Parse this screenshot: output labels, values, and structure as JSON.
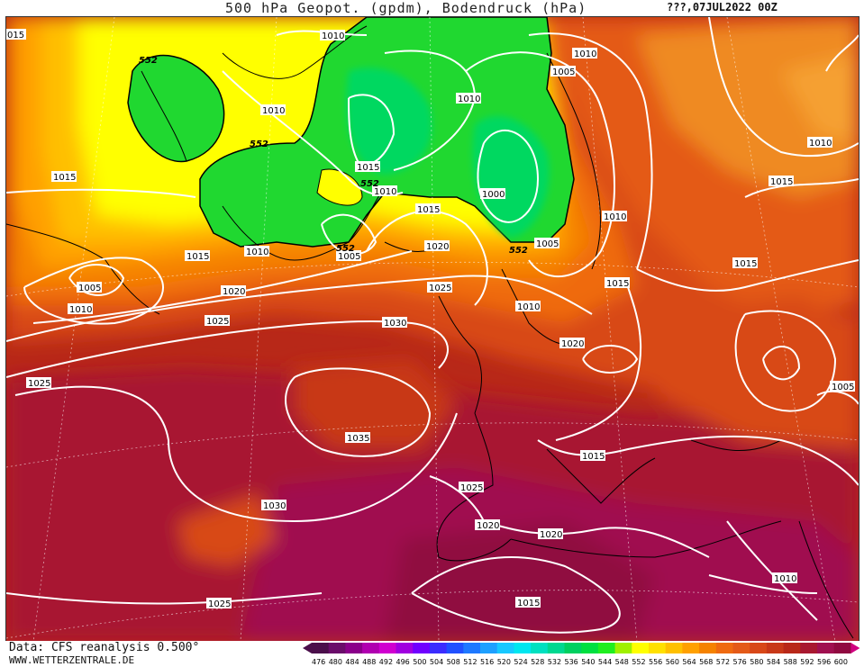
{
  "header": {
    "title": "500 hPa Geopot. (gpdm), Bodendruck (hPa)",
    "date": "???,07JUL2022 00Z"
  },
  "footer": {
    "data_source": "Data: CFS reanalysis 0.500°",
    "website": "WWW.WETTERZENTRALE.DE"
  },
  "colorbar": {
    "levels": [
      "476",
      "480",
      "484",
      "488",
      "492",
      "496",
      "500",
      "504",
      "508",
      "512",
      "516",
      "520",
      "524",
      "528",
      "532",
      "536",
      "540",
      "544",
      "548",
      "552",
      "556",
      "560",
      "564",
      "568",
      "572",
      "576",
      "580",
      "584",
      "588",
      "592",
      "596",
      "600"
    ],
    "colors": [
      "#4b0f4b",
      "#6a0d6a",
      "#8a008a",
      "#b000b0",
      "#d000d0",
      "#a000e0",
      "#7000ff",
      "#3b2cff",
      "#2050ff",
      "#1e78ff",
      "#1ea0ff",
      "#18c8ff",
      "#00e6f0",
      "#00e0c0",
      "#00d890",
      "#00d060",
      "#00e040",
      "#20ee20",
      "#a0f000",
      "#ffff00",
      "#ffe000",
      "#ffc000",
      "#ffa000",
      "#f58200",
      "#ef6a10",
      "#e45a18",
      "#d84818",
      "#c83818",
      "#b82818",
      "#a81830",
      "#a01050",
      "#900a40"
    ]
  },
  "isobars": [
    {
      "text": "1010",
      "where": "top-center"
    },
    {
      "text": "1010",
      "where": "north-norway"
    },
    {
      "text": "1005",
      "where": "north-norway-2"
    },
    {
      "text": "1010",
      "where": "greenland-north"
    },
    {
      "text": "1010",
      "where": "greenland-east"
    },
    {
      "text": "1015",
      "where": "iceland-north"
    },
    {
      "text": "1010",
      "where": "iceland"
    },
    {
      "text": "1000",
      "where": "norwegian-sea"
    },
    {
      "text": "1015",
      "where": "iceland-south"
    },
    {
      "text": "1010",
      "where": "greenland-south"
    },
    {
      "text": "1005",
      "where": "denmark-strait"
    },
    {
      "text": "1020",
      "where": "faroe"
    },
    {
      "text": "1005",
      "where": "scandinavia"
    },
    {
      "text": "1010",
      "where": "finland"
    },
    {
      "text": "1015",
      "where": "west-atlantic"
    },
    {
      "text": "1015",
      "where": "labrador-sea"
    },
    {
      "text": "1005",
      "where": "labrador-low"
    },
    {
      "text": "1010",
      "where": "labrador-low-2"
    },
    {
      "text": "1020",
      "where": "north-atlantic"
    },
    {
      "text": "1025",
      "where": "north-atlantic-2"
    },
    {
      "text": "1030",
      "where": "azores-north"
    },
    {
      "text": "1025",
      "where": "ireland"
    },
    {
      "text": "1015",
      "where": "baltic"
    },
    {
      "text": "1010",
      "where": "skagerrak"
    },
    {
      "text": "1020",
      "where": "north-sea"
    },
    {
      "text": "1015",
      "where": "russia-west"
    },
    {
      "text": "1015",
      "where": "russia-north"
    },
    {
      "text": "1010",
      "where": "russia-northeast"
    },
    {
      "text": "1005",
      "where": "russia-east"
    },
    {
      "text": "1025",
      "where": "west-atlantic-2"
    },
    {
      "text": "1035",
      "where": "azores-high"
    },
    {
      "text": "1015",
      "where": "italy"
    },
    {
      "text": "1025",
      "where": "iberia-north"
    },
    {
      "text": "1030",
      "where": "atlantic-south"
    },
    {
      "text": "1020",
      "where": "iberia-south"
    },
    {
      "text": "1020",
      "where": "sahara-north"
    },
    {
      "text": "1015",
      "where": "sahara"
    },
    {
      "text": "1025",
      "where": "atlantic-southwest"
    },
    {
      "text": "1010",
      "where": "middle-east"
    },
    {
      "text": "015",
      "where": "edge-topleft"
    }
  ],
  "geopotential_labels": [
    "552",
    "552",
    "552",
    "552",
    "552"
  ]
}
